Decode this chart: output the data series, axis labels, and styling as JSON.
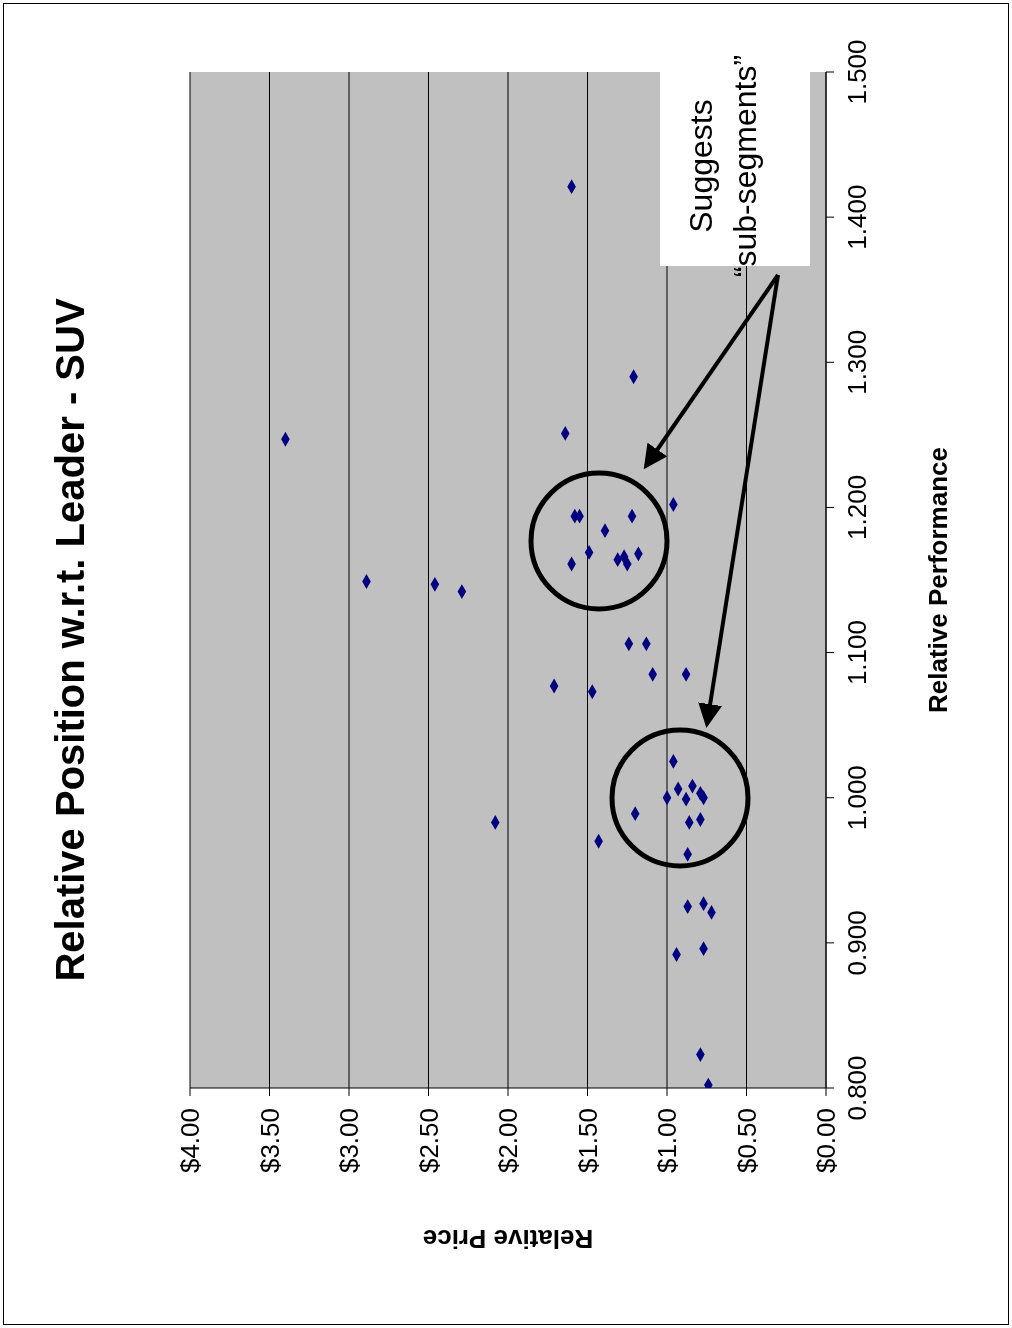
{
  "chart_data": {
    "type": "scatter",
    "title": "Relative Position w.r.t. Leader - SUV",
    "xlabel": "Relative Price",
    "ylabel": "Relative Performance",
    "x": [
      1.6,
      3.4,
      1.21,
      1.64,
      0.96,
      1.58,
      1.55,
      1.22,
      1.39,
      1.49,
      1.6,
      1.31,
      1.25,
      1.18,
      1.27,
      2.89,
      2.46,
      2.29,
      1.24,
      1.13,
      1.09,
      0.88,
      1.71,
      1.47,
      0.96,
      1.0,
      0.93,
      0.88,
      0.84,
      0.79,
      0.77,
      1.2,
      0.86,
      0.79,
      0.87,
      1.43,
      2.08,
      0.87,
      0.77,
      0.72,
      0.94,
      0.77,
      0.79,
      0.74
    ],
    "values": [
      1.421,
      1.247,
      1.29,
      1.251,
      1.202,
      1.194,
      1.194,
      1.194,
      1.184,
      1.169,
      1.161,
      1.164,
      1.161,
      1.168,
      1.166,
      1.149,
      1.147,
      1.142,
      1.106,
      1.106,
      1.085,
      1.085,
      1.077,
      1.073,
      1.025,
      1.0,
      1.006,
      0.999,
      1.008,
      1.003,
      1.0,
      0.989,
      0.983,
      0.985,
      0.961,
      0.97,
      0.983,
      0.925,
      0.927,
      0.921,
      0.892,
      0.896,
      0.823,
      0.802
    ],
    "color": "#000080",
    "marker": "diamond",
    "grid": "x",
    "xlim": [
      4,
      0
    ],
    "xticks": [
      {
        "value": 4,
        "label": "$4.00"
      },
      {
        "value": 3.5,
        "label": "$3.50"
      },
      {
        "value": 3,
        "label": "$3.00"
      },
      {
        "value": 2.5,
        "label": "$2.50"
      },
      {
        "value": 2,
        "label": "$2.00"
      },
      {
        "value": 1.5,
        "label": "$1.50"
      },
      {
        "value": 1,
        "label": "$1.00"
      },
      {
        "value": 0.5,
        "label": "$0.50"
      },
      {
        "value": 0,
        "label": "$0.00"
      }
    ],
    "ylim": [
      0.8,
      1.5
    ],
    "yticks": [
      {
        "value": 0.8,
        "label": "0.800"
      },
      {
        "value": 0.9,
        "label": "0.900"
      },
      {
        "value": 1.0,
        "label": "1.000"
      },
      {
        "value": 1.1,
        "label": "1.100"
      },
      {
        "value": 1.2,
        "label": "1.200"
      },
      {
        "value": 1.3,
        "label": "1.300"
      },
      {
        "value": 1.4,
        "label": "1.400"
      },
      {
        "value": 1.5,
        "label": "1.500"
      }
    ],
    "annotations": [
      "Suggests “sub-segments”"
    ]
  }
}
